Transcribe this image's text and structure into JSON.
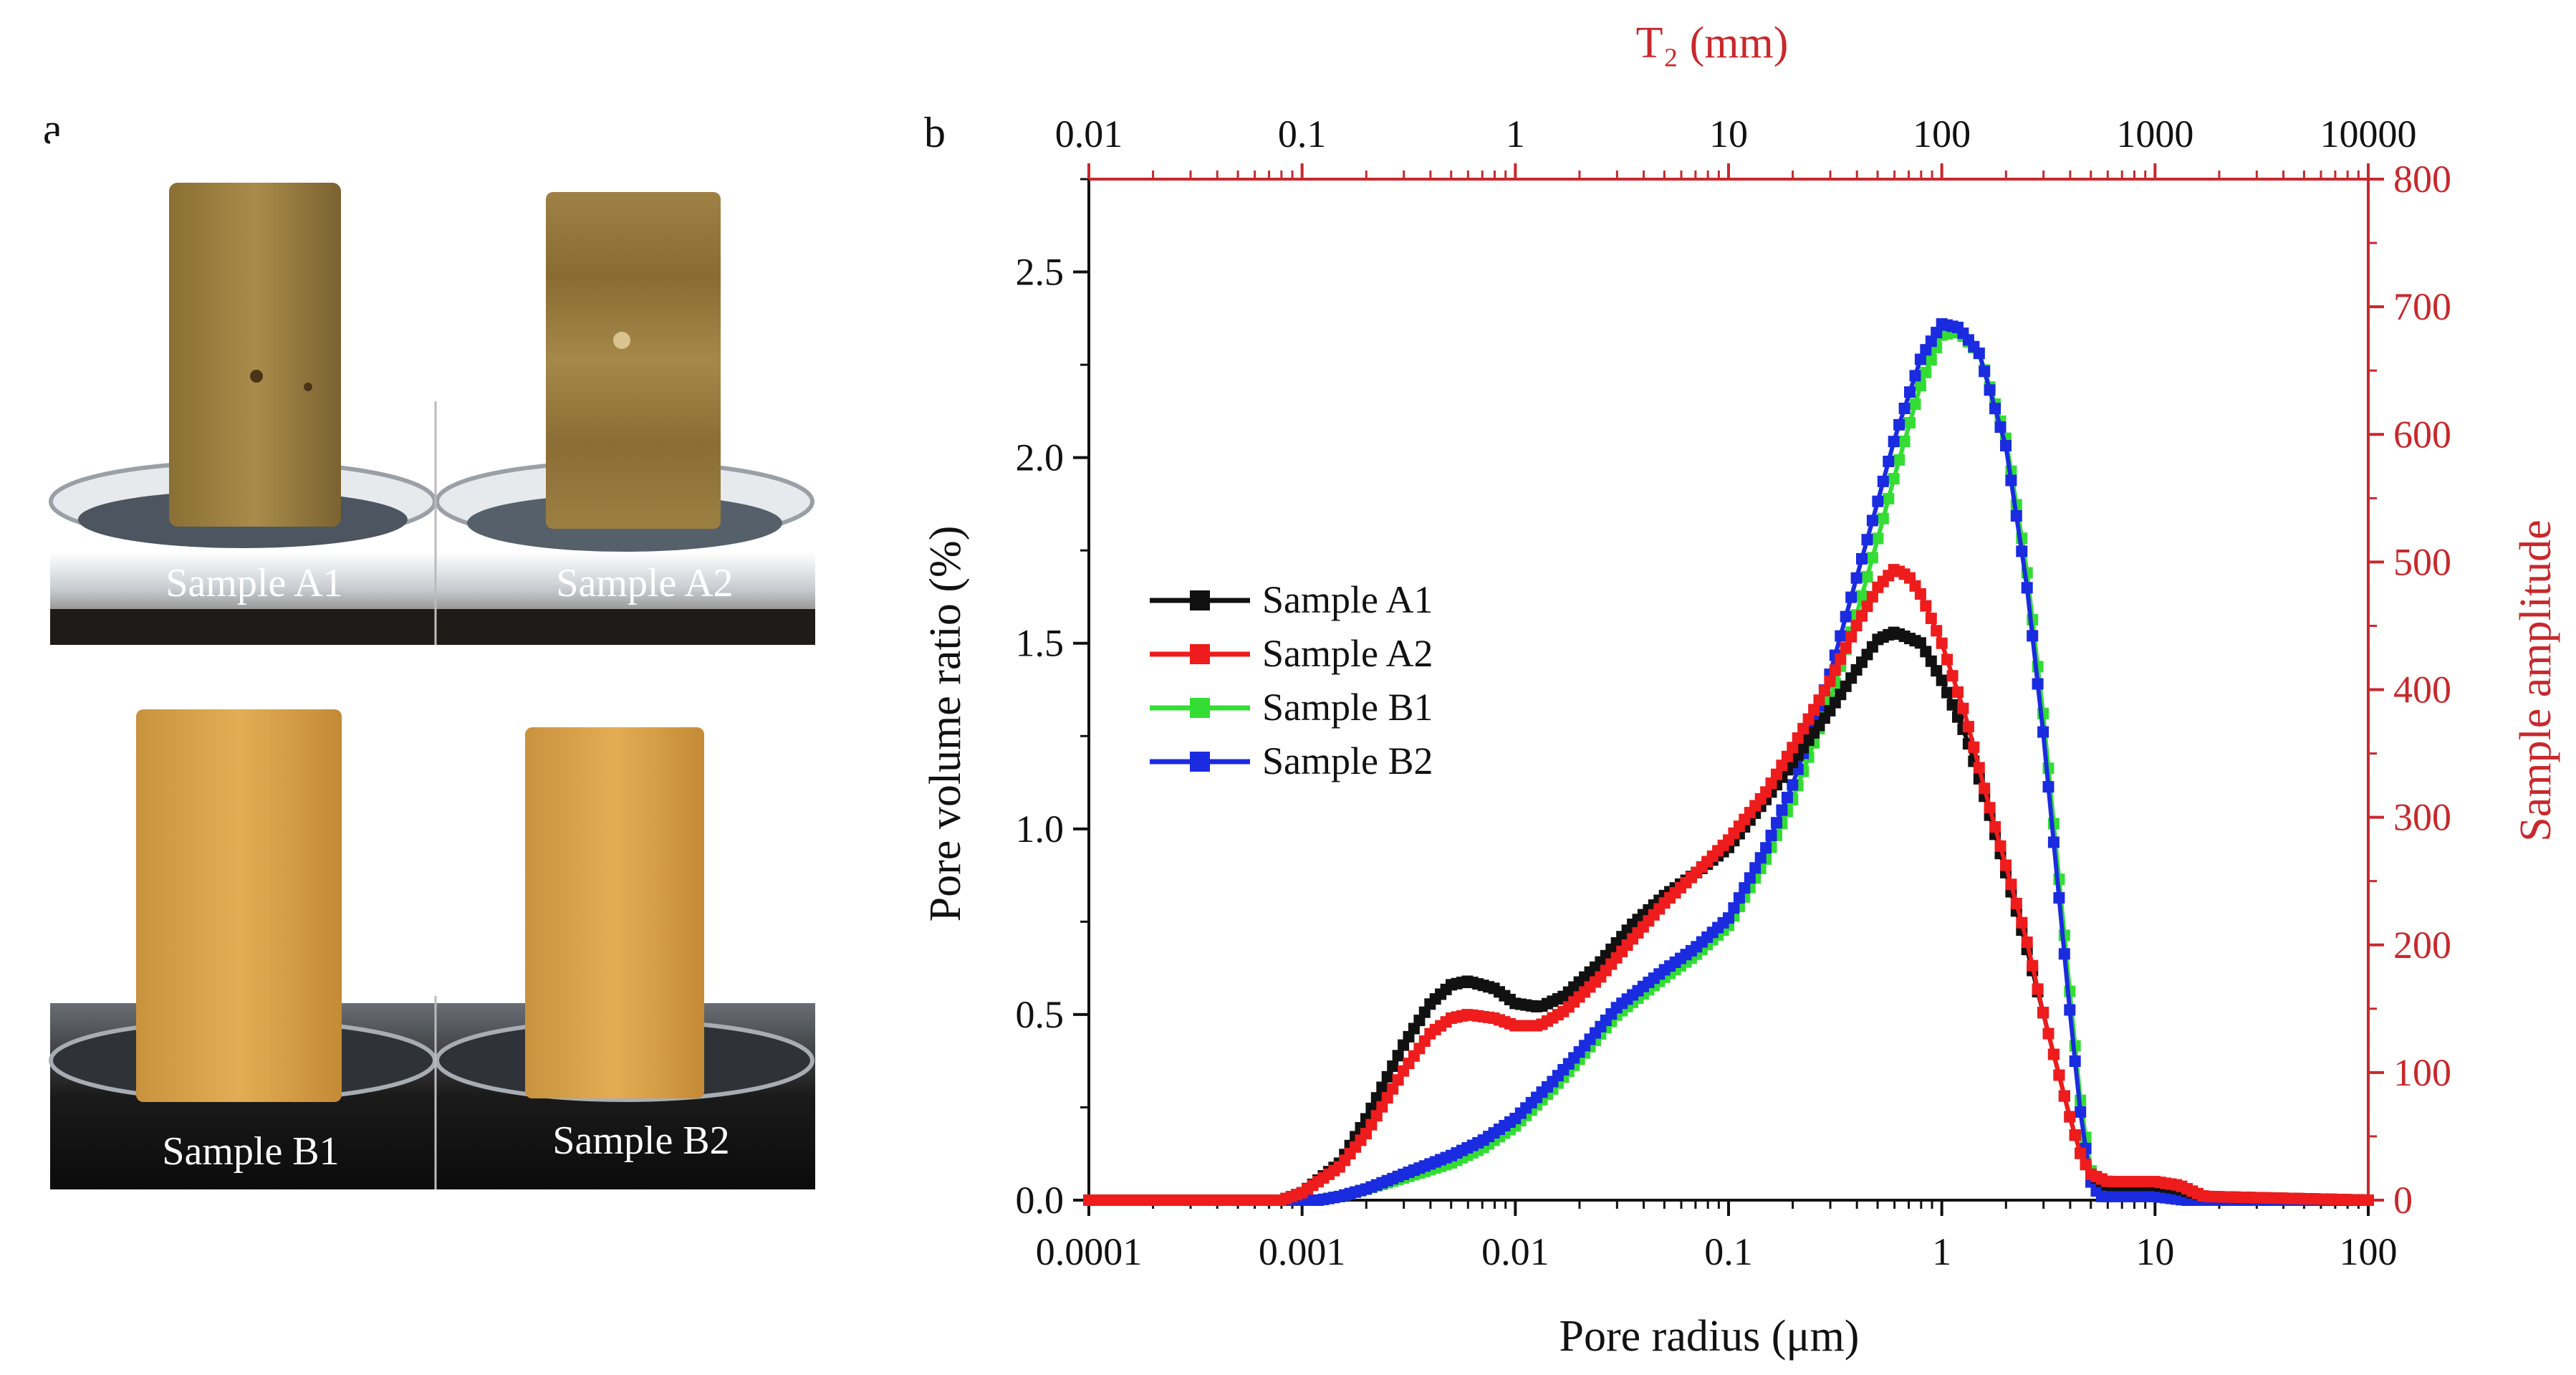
{
  "panels": {
    "a": {
      "letter": "a",
      "photos": [
        {
          "label": "Sample A1"
        },
        {
          "label": "Sample A2"
        },
        {
          "label": "Sample B1"
        },
        {
          "label": "Sample B2"
        }
      ]
    },
    "b": {
      "letter": "b"
    }
  },
  "colors": {
    "axis_black": "#111111",
    "axis_red": "#c8282c",
    "series_A1": "#111111",
    "series_A2": "#ee1c1c",
    "series_B1": "#33dd33",
    "series_B2": "#1a2be0"
  },
  "chart_data": {
    "type": "line",
    "xlabel": "Pore radius (μm)",
    "xscale": "log",
    "xlim": [
      0.0001,
      100
    ],
    "xticks": [
      0.0001,
      0.001,
      0.01,
      0.1,
      1,
      10,
      100
    ],
    "xtick_labels": [
      "0.0001",
      "0.001",
      "0.01",
      "0.1",
      "1",
      "10",
      "100"
    ],
    "ylabel": "Pore volume ratio (%)",
    "ylim": [
      0,
      2.75
    ],
    "yticks": [
      0,
      0.5,
      1.0,
      1.5,
      2.0,
      2.5
    ],
    "ytick_labels": [
      "0.0",
      "0.5",
      "1.0",
      "1.5",
      "2.0",
      "2.5"
    ],
    "x2label": "T₂ (mm)",
    "x2lim": [
      0.01,
      10000
    ],
    "x2ticks": [
      0.01,
      0.1,
      1,
      10,
      100,
      1000,
      10000
    ],
    "x2tick_labels": [
      "0.01",
      "0.1",
      "1",
      "10",
      "100",
      "1000",
      "10000"
    ],
    "y2label": "Sample amplitude",
    "y2lim": [
      0,
      800
    ],
    "y2ticks": [
      0,
      100,
      200,
      300,
      400,
      500,
      600,
      700,
      800
    ],
    "y2tick_labels": [
      "0",
      "100",
      "200",
      "300",
      "400",
      "500",
      "600",
      "700",
      "800"
    ],
    "legend_position": "middle-left",
    "series": [
      {
        "name": "Sample A1",
        "color": "#111111",
        "x": [
          0.0001,
          0.0008,
          0.001,
          0.0015,
          0.002,
          0.003,
          0.004,
          0.005,
          0.006,
          0.008,
          0.01,
          0.013,
          0.017,
          0.025,
          0.035,
          0.05,
          0.07,
          0.1,
          0.15,
          0.2,
          0.3,
          0.4,
          0.5,
          0.6,
          0.8,
          1.0,
          1.3,
          1.6,
          2.0,
          2.5,
          3.0,
          3.5,
          4.0,
          4.5,
          5.0,
          6.0,
          8.0,
          10,
          13,
          17,
          100
        ],
        "y": [
          0,
          0,
          0.02,
          0.1,
          0.22,
          0.42,
          0.53,
          0.58,
          0.59,
          0.57,
          0.53,
          0.52,
          0.55,
          0.64,
          0.74,
          0.82,
          0.88,
          0.95,
          1.08,
          1.18,
          1.32,
          1.43,
          1.51,
          1.53,
          1.5,
          1.4,
          1.25,
          1.08,
          0.88,
          0.68,
          0.5,
          0.35,
          0.22,
          0.12,
          0.07,
          0.04,
          0.04,
          0.04,
          0.03,
          0.01,
          0
        ]
      },
      {
        "name": "Sample A2",
        "color": "#ee1c1c",
        "x": [
          0.0001,
          0.0008,
          0.001,
          0.0015,
          0.002,
          0.003,
          0.004,
          0.005,
          0.006,
          0.008,
          0.01,
          0.013,
          0.017,
          0.025,
          0.035,
          0.05,
          0.07,
          0.1,
          0.15,
          0.2,
          0.3,
          0.4,
          0.5,
          0.6,
          0.7,
          0.8,
          1.0,
          1.3,
          1.6,
          2.0,
          2.5,
          3.0,
          3.5,
          4.0,
          4.5,
          5.0,
          6.0,
          8.0,
          10,
          13,
          17,
          100
        ],
        "y": [
          0,
          0,
          0.02,
          0.09,
          0.18,
          0.35,
          0.45,
          0.49,
          0.5,
          0.49,
          0.47,
          0.47,
          0.51,
          0.6,
          0.7,
          0.8,
          0.88,
          0.97,
          1.1,
          1.22,
          1.4,
          1.55,
          1.65,
          1.7,
          1.68,
          1.63,
          1.5,
          1.3,
          1.1,
          0.9,
          0.7,
          0.5,
          0.35,
          0.22,
          0.12,
          0.07,
          0.05,
          0.05,
          0.05,
          0.04,
          0.01,
          0
        ]
      },
      {
        "name": "Sample B1",
        "color": "#33dd33",
        "x": [
          0.0001,
          0.0012,
          0.0015,
          0.002,
          0.003,
          0.005,
          0.007,
          0.01,
          0.015,
          0.02,
          0.03,
          0.05,
          0.07,
          0.1,
          0.15,
          0.2,
          0.3,
          0.4,
          0.5,
          0.6,
          0.8,
          1.0,
          1.2,
          1.5,
          2.0,
          2.5,
          3.0,
          3.5,
          4.0,
          4.5,
          5.0,
          5.5,
          7.0,
          10,
          14,
          100
        ],
        "y": [
          0,
          0,
          0.01,
          0.03,
          0.06,
          0.1,
          0.14,
          0.2,
          0.3,
          0.38,
          0.5,
          0.6,
          0.66,
          0.74,
          0.92,
          1.08,
          1.35,
          1.58,
          1.78,
          1.95,
          2.2,
          2.33,
          2.34,
          2.28,
          2.05,
          1.7,
          1.3,
          0.9,
          0.55,
          0.25,
          0.08,
          0.03,
          0.02,
          0.02,
          0.01,
          0
        ]
      },
      {
        "name": "Sample B2",
        "color": "#1a2be0",
        "x": [
          0.0001,
          0.0012,
          0.0015,
          0.002,
          0.003,
          0.005,
          0.007,
          0.01,
          0.015,
          0.02,
          0.03,
          0.05,
          0.07,
          0.1,
          0.15,
          0.2,
          0.3,
          0.4,
          0.5,
          0.6,
          0.8,
          1.0,
          1.2,
          1.5,
          2.0,
          2.5,
          3.0,
          3.5,
          4.0,
          4.5,
          5.0,
          5.5,
          7.0,
          10,
          14,
          100
        ],
        "y": [
          0,
          0,
          0.01,
          0.03,
          0.07,
          0.12,
          0.16,
          0.22,
          0.32,
          0.4,
          0.52,
          0.62,
          0.68,
          0.76,
          0.95,
          1.12,
          1.42,
          1.68,
          1.88,
          2.05,
          2.27,
          2.36,
          2.35,
          2.28,
          2.03,
          1.66,
          1.25,
          0.85,
          0.5,
          0.22,
          0.05,
          0.01,
          0.01,
          0.01,
          0,
          0
        ]
      }
    ]
  }
}
